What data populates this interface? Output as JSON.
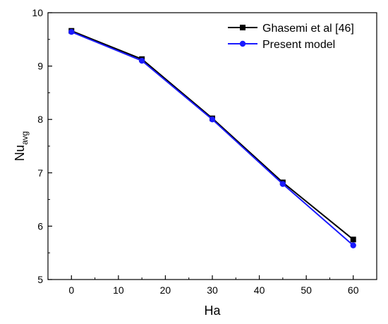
{
  "chart_data": {
    "type": "line",
    "xlabel": "Ha",
    "ylabel_main": "Nu",
    "ylabel_sub": "avg",
    "xlim": [
      -5,
      65
    ],
    "ylim": [
      5,
      10
    ],
    "xticks": [
      0,
      10,
      20,
      30,
      40,
      50,
      60
    ],
    "yticks": [
      5,
      6,
      7,
      8,
      9,
      10
    ],
    "legend_position": "top-right",
    "series": [
      {
        "name": "Ghasemi et al [46]",
        "color": "#000000",
        "marker": "square",
        "x": [
          0,
          15,
          30,
          45,
          60
        ],
        "y": [
          9.66,
          9.13,
          8.02,
          6.82,
          5.75
        ]
      },
      {
        "name": "Present model",
        "color": "#1a1aff",
        "marker": "circle",
        "x": [
          0,
          15,
          30,
          45,
          60
        ],
        "y": [
          9.64,
          9.1,
          8.0,
          6.79,
          5.64
        ]
      }
    ]
  }
}
